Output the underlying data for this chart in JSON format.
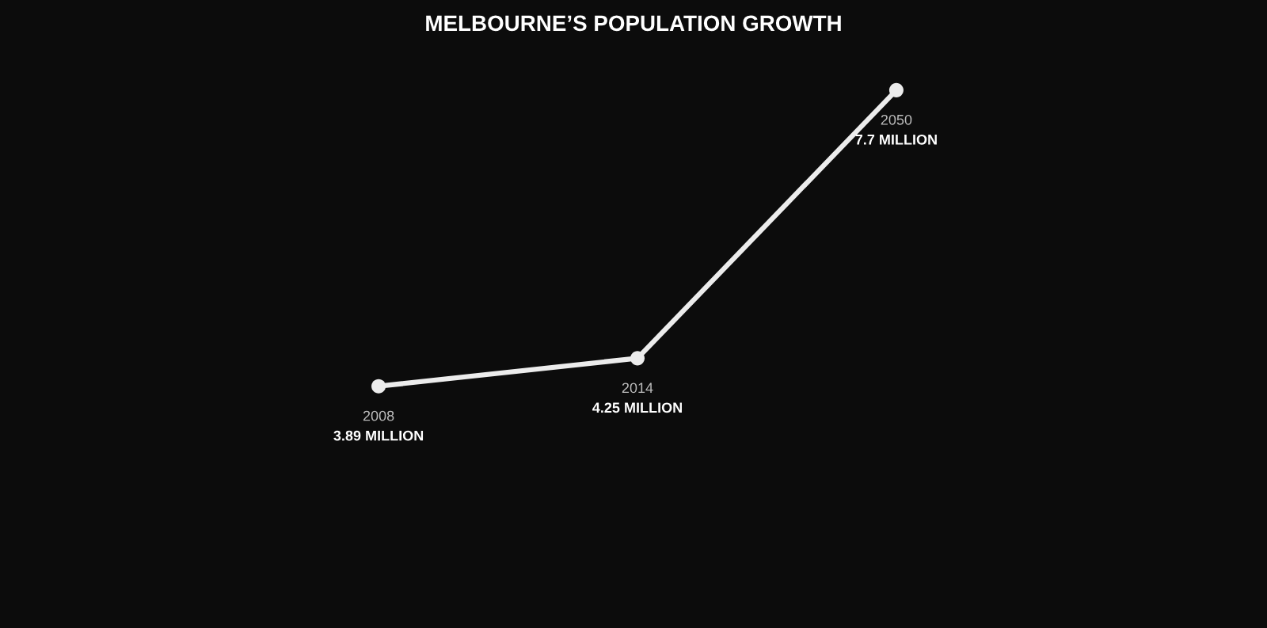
{
  "chart_data": {
    "type": "line",
    "title": "MELBOURNE’S POPULATION GROWTH",
    "categories": [
      "2008",
      "2014",
      "2050"
    ],
    "values": [
      3.89,
      4.25,
      7.7
    ],
    "value_labels": [
      "3.89 MILLION",
      "4.25 MILLION",
      "7.7 MILLION"
    ],
    "color": "#ececec",
    "marker": "circle",
    "line_style": "solid",
    "legend": false,
    "tick_labels": false
  }
}
